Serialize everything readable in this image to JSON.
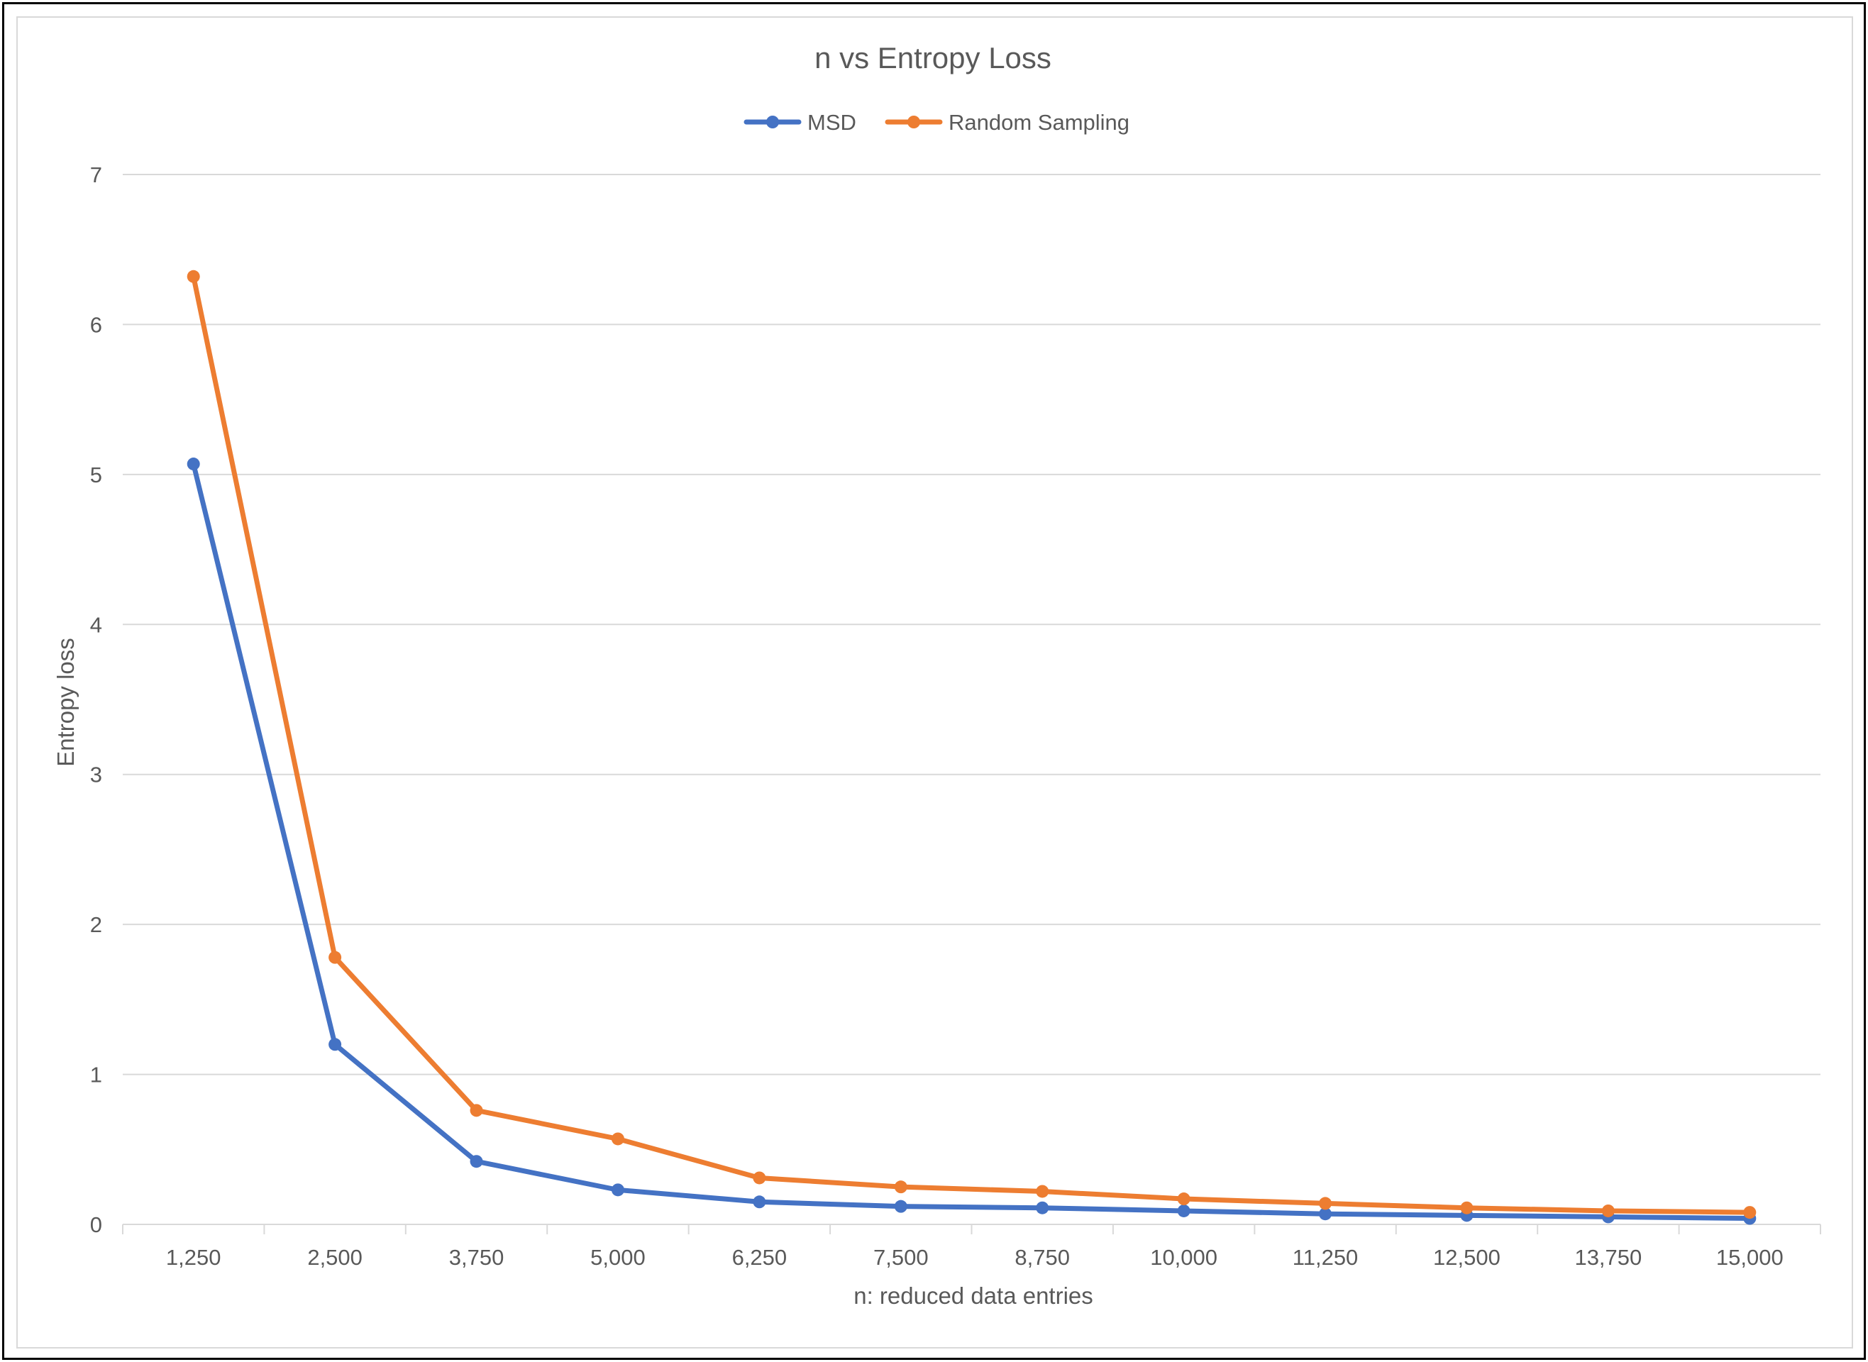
{
  "chart_data": {
    "type": "line",
    "title": "n vs Entropy Loss",
    "xlabel": "n: reduced data entries",
    "ylabel": "Entropy loss",
    "categories": [
      "1,250",
      "2,500",
      "3,750",
      "5,000",
      "6,250",
      "7,500",
      "8,750",
      "10,000",
      "11,250",
      "12,500",
      "13,750",
      "15,000"
    ],
    "x": [
      1250,
      2500,
      3750,
      5000,
      6250,
      7500,
      8750,
      10000,
      11250,
      12500,
      13750,
      15000
    ],
    "ylim": [
      0,
      7
    ],
    "yticks": [
      "0",
      "1",
      "2",
      "3",
      "4",
      "5",
      "6",
      "7"
    ],
    "grid": true,
    "legend_position": "top",
    "series": [
      {
        "name": "MSD",
        "color": "#4472c4",
        "values": [
          5.07,
          1.2,
          0.42,
          0.23,
          0.15,
          0.12,
          0.11,
          0.09,
          0.07,
          0.06,
          0.05,
          0.04
        ]
      },
      {
        "name": "Random Sampling",
        "color": "#ed7d31",
        "values": [
          6.32,
          1.78,
          0.76,
          0.57,
          0.31,
          0.25,
          0.22,
          0.17,
          0.14,
          0.11,
          0.09,
          0.08
        ]
      }
    ]
  }
}
